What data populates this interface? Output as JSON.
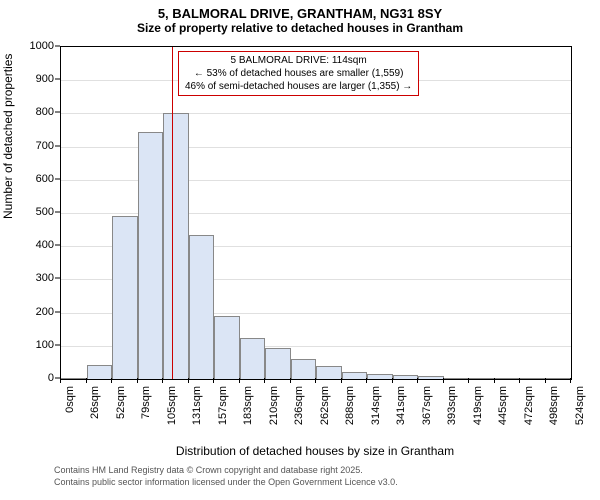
{
  "chart": {
    "type": "histogram",
    "title1": "5, BALMORAL DRIVE, GRANTHAM, NG31 8SY",
    "title2": "Size of property relative to detached houses in Grantham",
    "ylabel": "Number of detached properties",
    "xlabel": "Distribution of detached houses by size in Grantham",
    "ylim": [
      0,
      1000
    ],
    "ytick_step": 100,
    "yticks": [
      0,
      100,
      200,
      300,
      400,
      500,
      600,
      700,
      800,
      900,
      1000
    ],
    "xticks": [
      "0sqm",
      "26sqm",
      "52sqm",
      "79sqm",
      "105sqm",
      "131sqm",
      "157sqm",
      "183sqm",
      "210sqm",
      "236sqm",
      "262sqm",
      "288sqm",
      "314sqm",
      "341sqm",
      "367sqm",
      "393sqm",
      "419sqm",
      "445sqm",
      "472sqm",
      "498sqm",
      "524sqm"
    ],
    "values": [
      0,
      42,
      490,
      745,
      800,
      435,
      190,
      125,
      92,
      60,
      40,
      22,
      15,
      12,
      8,
      2,
      3,
      2,
      1,
      2
    ],
    "bar_fill": "#dbe5f5",
    "bar_stroke": "#888888",
    "grid_color": "#e0e0e0",
    "background_color": "#ffffff",
    "marker_color": "#cc0000",
    "marker_position": 114,
    "xmax": 524,
    "annotation": {
      "line1": "5 BALMORAL DRIVE: 114sqm",
      "line2": "← 53% of detached houses are smaller (1,559)",
      "line3": "46% of semi-detached houses are larger (1,355) →",
      "border_color": "#cc0000"
    },
    "footer1": "Contains HM Land Registry data © Crown copyright and database right 2025.",
    "footer2": "Contains public sector information licensed under the Open Government Licence v3.0."
  }
}
